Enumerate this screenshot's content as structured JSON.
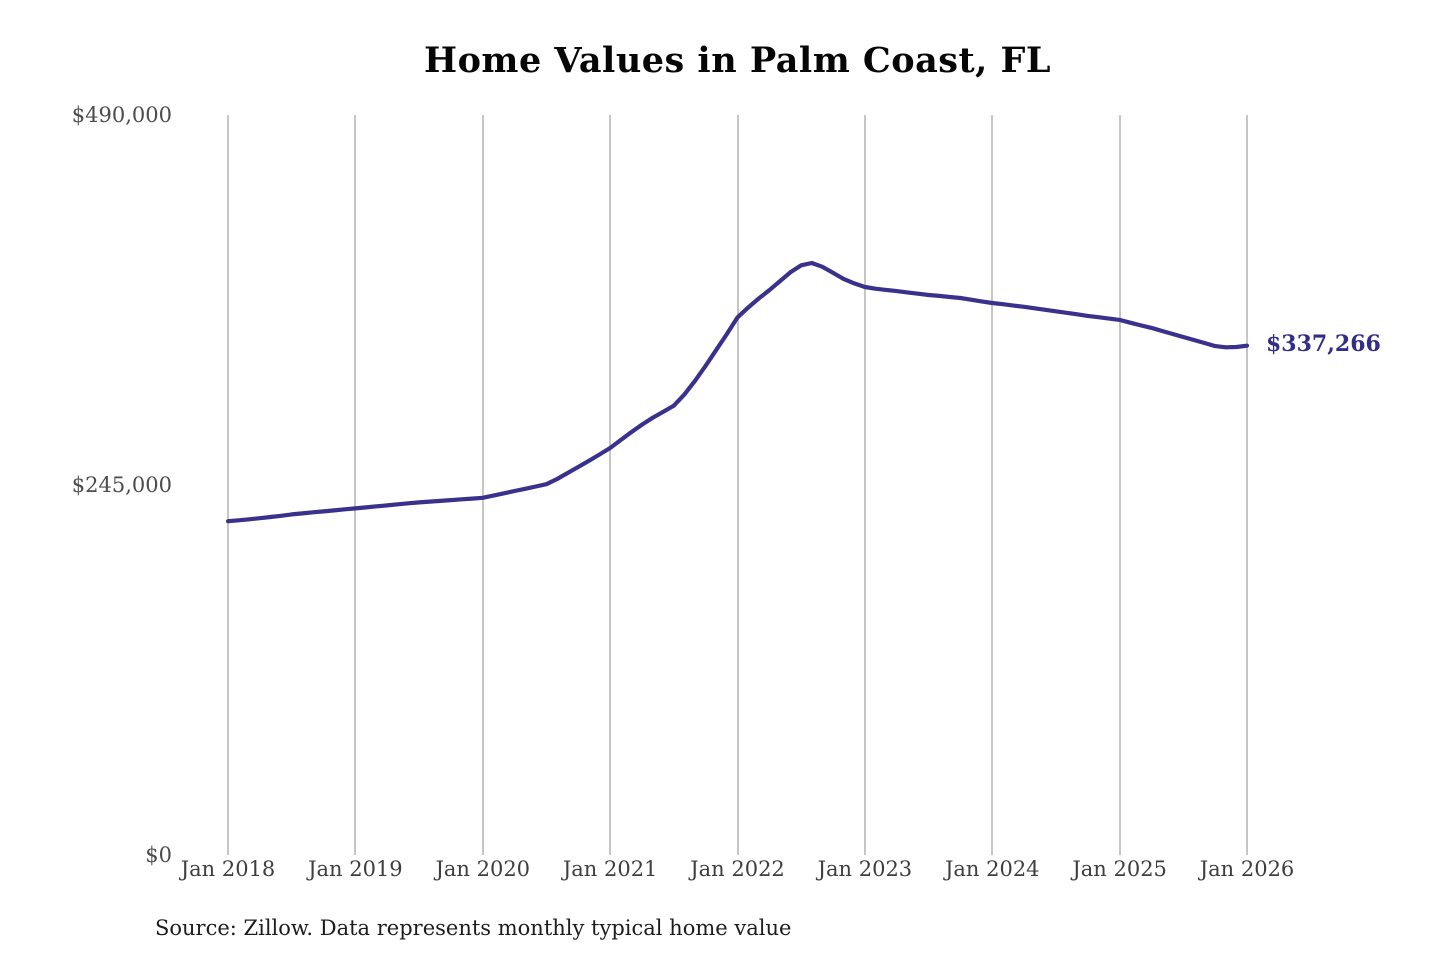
{
  "title": "Home Values in Palm Coast, FL",
  "source_note": "Source: Zillow. Data represents monthly typical home value",
  "colors": {
    "line": "#3a318c",
    "end_label": "#322d86",
    "gridline": "#c6c6c6",
    "background": "#ffffff"
  },
  "chart_data": {
    "type": "line",
    "title": "Home Values in Palm Coast, FL",
    "series_name": "Monthly typical home value (ZHVI)",
    "x_start": "Jan 2018",
    "x_end": "Jan 2026",
    "x_interval": "monthly",
    "x_ticks": [
      "Jan 2018",
      "Jan 2019",
      "Jan 2020",
      "Jan 2021",
      "Jan 2022",
      "Jan 2023",
      "Jan 2024",
      "Jan 2025",
      "Jan 2026"
    ],
    "y_ticks": [
      {
        "label": "$0",
        "value": 0
      },
      {
        "label": "$245,000",
        "value": 245000
      },
      {
        "label": "$490,000",
        "value": 490000
      }
    ],
    "ylim": [
      0,
      490000
    ],
    "grid": "vertical-only",
    "legend": "none",
    "end_label": "$337,266",
    "end_value": 337266,
    "values": [
      221000,
      221600,
      222300,
      223000,
      223800,
      224600,
      225500,
      226200,
      226900,
      227500,
      228200,
      228900,
      229500,
      230200,
      230900,
      231500,
      232200,
      232900,
      233500,
      234000,
      234500,
      235000,
      235500,
      236000,
      236500,
      238000,
      239500,
      241000,
      242500,
      244000,
      245500,
      249000,
      253000,
      257000,
      261000,
      265200,
      269500,
      274700,
      280000,
      285000,
      289500,
      293500,
      297500,
      305000,
      314000,
      324000,
      334500,
      345000,
      356000,
      362500,
      368500,
      374000,
      380000,
      386000,
      390500,
      392000,
      389500,
      385500,
      381500,
      378500,
      376100,
      375000,
      374200,
      373400,
      372500,
      371700,
      370800,
      370200,
      369500,
      368800,
      367700,
      366600,
      365500,
      364700,
      363800,
      363000,
      362000,
      361000,
      360000,
      359000,
      358000,
      357000,
      356100,
      355200,
      354300,
      352500,
      350700,
      349000,
      347000,
      345000,
      343000,
      341000,
      339000,
      337000,
      336200,
      336400,
      337266
    ]
  }
}
